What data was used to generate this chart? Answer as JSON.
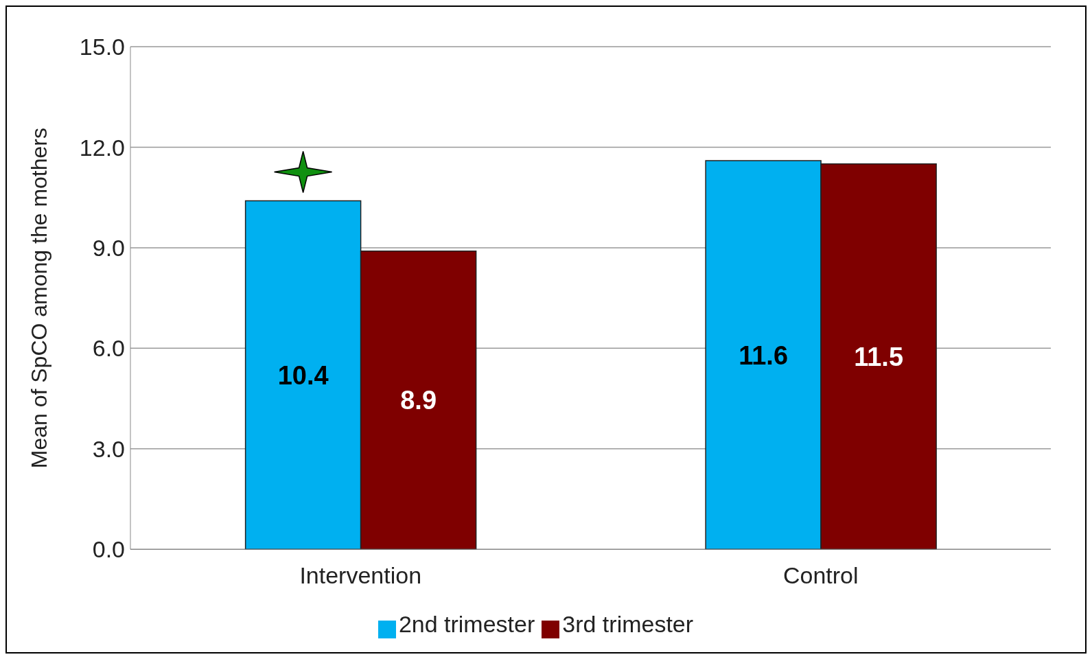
{
  "chart_data": {
    "type": "bar",
    "ylabel": "Mean of SpCO among the mothers",
    "categories": [
      "Intervention",
      "Control"
    ],
    "series": [
      {
        "name": "2nd trimester",
        "color": "#00b0f0",
        "values": [
          10.4,
          11.6
        ]
      },
      {
        "name": "3rd trimester",
        "color": "#7f0000",
        "values": [
          8.9,
          11.5
        ]
      }
    ],
    "ylim": [
      0,
      15
    ],
    "yticks": [
      {
        "value": 0,
        "label": "0.0"
      },
      {
        "value": 3,
        "label": "3.0"
      },
      {
        "value": 6,
        "label": "6.0"
      },
      {
        "value": 9,
        "label": "9.0"
      },
      {
        "value": 12,
        "label": "12.0"
      },
      {
        "value": 15,
        "label": "15.0"
      }
    ],
    "grid": "y",
    "legend": "bottom",
    "data_labels": true
  }
}
